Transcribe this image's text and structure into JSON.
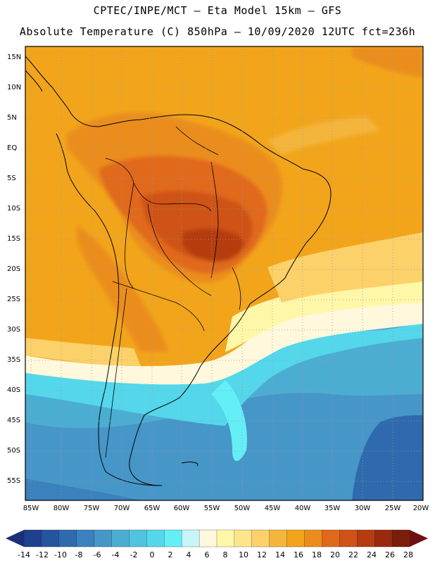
{
  "header": {
    "line1": "CPTEC/INPE/MCT –  Eta Model 15km – GFS",
    "line2": "Absolute Temperature (C) 850hPa – 10/09/2020 12UTC fct=236h"
  },
  "map": {
    "lat_labels": [
      "15N",
      "10N",
      "5N",
      "EQ",
      "5S",
      "10S",
      "15S",
      "20S",
      "25S",
      "30S",
      "35S",
      "40S",
      "45S",
      "50S",
      "55S"
    ],
    "lon_labels": [
      "85W",
      "80W",
      "75W",
      "70W",
      "65W",
      "60W",
      "55W",
      "50W",
      "45W",
      "40W",
      "35W",
      "30W",
      "25W",
      "20W"
    ],
    "extent": {
      "lon_min": -85.5,
      "lon_max": -19.5,
      "lat_min": -58.0,
      "lat_max": 16.5
    }
  },
  "colorbar": {
    "labels": [
      "-14",
      "-12",
      "-10",
      "-8",
      "-6",
      "-4",
      "-2",
      "0",
      "2",
      "4",
      "6",
      "8",
      "10",
      "12",
      "14",
      "16",
      "18",
      "20",
      "22",
      "24",
      "26",
      "28"
    ],
    "colors": [
      "#1f3f8f",
      "#25559e",
      "#2f6aae",
      "#3a81bd",
      "#4796c8",
      "#4cadd3",
      "#4fc3df",
      "#54d7ea",
      "#64eef5",
      "#c7f5fa",
      "#fff8dc",
      "#fff7a8",
      "#fde58a",
      "#fcd16a",
      "#f4b53c",
      "#f2a51b",
      "#eb8d1d",
      "#e0691a",
      "#cf5216",
      "#b53c11",
      "#9a2a0e",
      "#7a1d0b"
    ],
    "low_cap_color": "#1b2f78",
    "high_cap_color": "#6f0f14"
  }
}
